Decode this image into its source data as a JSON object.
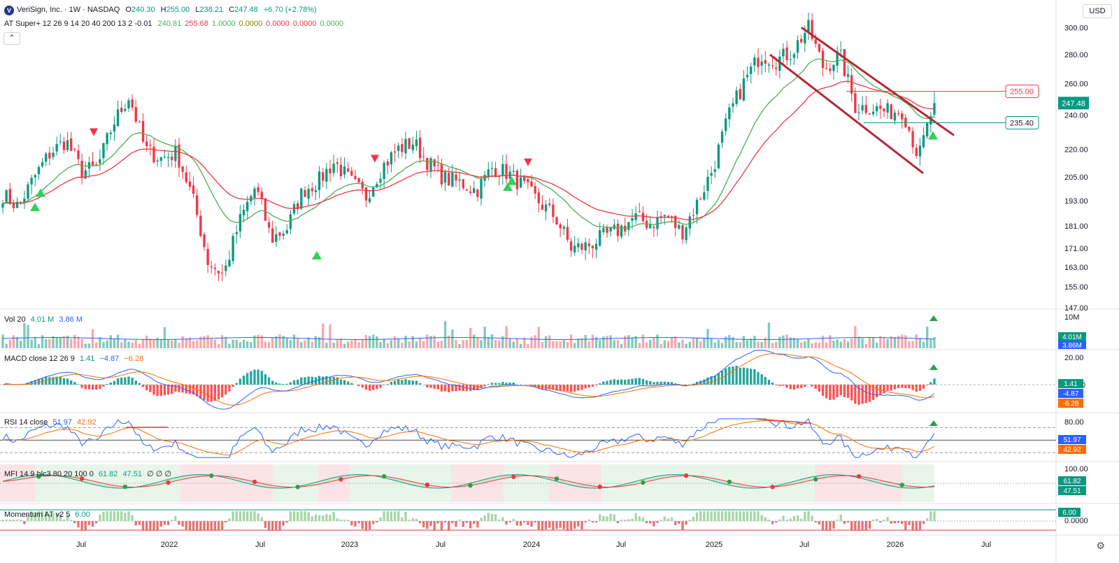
{
  "header": {
    "symbol_title": "VeriSign, Inc. · 1W · NASDAQ",
    "ohlc": {
      "o_label": "O",
      "o": "240.30",
      "h_label": "H",
      "h": "255.00",
      "l_label": "L",
      "l": "238.21",
      "c_label": "C",
      "c": "247.48",
      "change": "+6.70 (+2.78%)"
    },
    "currency": "USD",
    "collapse_icon": "chevron-up-icon",
    "logo_letter": "V"
  },
  "indicator_super": {
    "name": "AT Super+ 12 26 9 14 20 40 200 13 2 -0.01",
    "values": [
      "240.81",
      "255.68",
      "1.0000",
      "0.0000",
      "0.0000",
      "0.0000",
      "0.0000"
    ],
    "colors": [
      "#4caf50",
      "#f23645",
      "#4caf50",
      "#808000",
      "#f23645",
      "#f23645",
      "#4caf50"
    ]
  },
  "price_axis": {
    "ticks": [
      "300.00",
      "280.00",
      "260.00",
      "240.00",
      "220.00",
      "205.00",
      "193.00",
      "181.00",
      "171.00",
      "163.00",
      "155.00",
      "147.00"
    ],
    "last_price": "247.48",
    "resistance": "255.00",
    "support": "235.40"
  },
  "time_axis": {
    "labels": [
      "Jul",
      "2022",
      "Jul",
      "2023",
      "Jul",
      "2024",
      "Jul",
      "2025",
      "Jul",
      "2026",
      "Jul"
    ]
  },
  "volume_pane": {
    "label": "Vol 20",
    "v1": "4.01 M",
    "v2": "3.86 M",
    "axis_top": "10M",
    "badge1": "4.01M",
    "badge2": "3.86M"
  },
  "macd_pane": {
    "label": "MACD close 12 26 9",
    "v1": "1.41",
    "v2": "−4.87",
    "v3": "−6.28",
    "axis_top": "20.00",
    "axis_zero": "0",
    "badge1": "1.41",
    "badge2": "-4.87",
    "badge3": "-6.28"
  },
  "rsi_pane": {
    "label": "RSI 14 close",
    "v1": "51.97",
    "v2": "42.92",
    "axis_top": "80.00",
    "badge1": "51.97",
    "badge2": "42.92"
  },
  "mfi_pane": {
    "label": "MFI 14 9 hlc3 80 20 100 0",
    "v1": "61.82",
    "v2": "47.51",
    "v3": "∅ ∅ ∅",
    "axis_top": "100.00",
    "badge1": "61.82",
    "badge2": "47.51"
  },
  "momentum_pane": {
    "label": "Momentum AT v2 5",
    "v1": "6.00",
    "axis_zero": "0.0000",
    "badge1": "6.00"
  },
  "settings_icon": "gear-icon",
  "chart_data": {
    "type": "candlestick",
    "title": "VeriSign, Inc. · 1W · NASDAQ",
    "xlabel": "",
    "ylabel": "",
    "ylim": [
      147,
      305
    ],
    "y_scale": "log",
    "date_range": [
      "2021-04",
      "2026-03"
    ],
    "weekly_close_approx": [
      {
        "date": "2021-04",
        "close": 196
      },
      {
        "date": "2021-05",
        "close": 190
      },
      {
        "date": "2021-06",
        "close": 205
      },
      {
        "date": "2021-07",
        "close": 218
      },
      {
        "date": "2021-08",
        "close": 225
      },
      {
        "date": "2021-09",
        "close": 208
      },
      {
        "date": "2021-10",
        "close": 210
      },
      {
        "date": "2021-11",
        "close": 235
      },
      {
        "date": "2021-12",
        "close": 252
      },
      {
        "date": "2022-01",
        "close": 220
      },
      {
        "date": "2022-02",
        "close": 215
      },
      {
        "date": "2022-03",
        "close": 218
      },
      {
        "date": "2022-04",
        "close": 195
      },
      {
        "date": "2022-05",
        "close": 165
      },
      {
        "date": "2022-06",
        "close": 160
      },
      {
        "date": "2022-07",
        "close": 183
      },
      {
        "date": "2022-08",
        "close": 200
      },
      {
        "date": "2022-09",
        "close": 175
      },
      {
        "date": "2022-10",
        "close": 180
      },
      {
        "date": "2022-11",
        "close": 198
      },
      {
        "date": "2022-12",
        "close": 203
      },
      {
        "date": "2023-01",
        "close": 213
      },
      {
        "date": "2023-02",
        "close": 203
      },
      {
        "date": "2023-03",
        "close": 195
      },
      {
        "date": "2023-04",
        "close": 210
      },
      {
        "date": "2023-05",
        "close": 220
      },
      {
        "date": "2023-06",
        "close": 224
      },
      {
        "date": "2023-07",
        "close": 212
      },
      {
        "date": "2023-08",
        "close": 204
      },
      {
        "date": "2023-09",
        "close": 202
      },
      {
        "date": "2023-10",
        "close": 198
      },
      {
        "date": "2023-11",
        "close": 210
      },
      {
        "date": "2023-12",
        "close": 207
      },
      {
        "date": "2024-01",
        "close": 200
      },
      {
        "date": "2024-02",
        "close": 192
      },
      {
        "date": "2024-03",
        "close": 185
      },
      {
        "date": "2024-04",
        "close": 171
      },
      {
        "date": "2024-05",
        "close": 172
      },
      {
        "date": "2024-06",
        "close": 176
      },
      {
        "date": "2024-07",
        "close": 179
      },
      {
        "date": "2024-08",
        "close": 185
      },
      {
        "date": "2024-09",
        "close": 182
      },
      {
        "date": "2024-10",
        "close": 186
      },
      {
        "date": "2024-11",
        "close": 178
      },
      {
        "date": "2024-12",
        "close": 192
      },
      {
        "date": "2025-01",
        "close": 210
      },
      {
        "date": "2025-02",
        "close": 240
      },
      {
        "date": "2025-03",
        "close": 262
      },
      {
        "date": "2025-04",
        "close": 280
      },
      {
        "date": "2025-05",
        "close": 276
      },
      {
        "date": "2025-06",
        "close": 282
      },
      {
        "date": "2025-07",
        "close": 300
      },
      {
        "date": "2025-08",
        "close": 270
      },
      {
        "date": "2025-09",
        "close": 280
      },
      {
        "date": "2025-10",
        "close": 245
      },
      {
        "date": "2025-11",
        "close": 245
      },
      {
        "date": "2025-12",
        "close": 242
      },
      {
        "date": "2026-01",
        "close": 243
      },
      {
        "date": "2026-02",
        "close": 215
      },
      {
        "date": "2026-03",
        "close": 247.48
      }
    ],
    "annotations": [
      {
        "label": "255.00",
        "kind": "horizontal-line",
        "value": 255.0
      },
      {
        "label": "235.40",
        "kind": "horizontal-line",
        "value": 235.4
      }
    ],
    "grid": false,
    "legend": "top-left"
  }
}
